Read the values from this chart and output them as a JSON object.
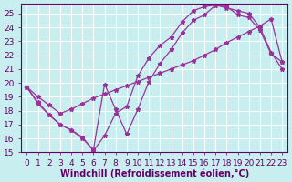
{
  "xlabel": "Windchill (Refroidissement éolien,°C)",
  "background_color": "#c8eef0",
  "grid_color": "#ffffff",
  "line_color": "#993399",
  "xlim": [
    -0.5,
    23.5
  ],
  "ylim": [
    15,
    25.7
  ],
  "yticks": [
    15,
    16,
    17,
    18,
    19,
    20,
    21,
    22,
    23,
    24,
    25
  ],
  "xticks": [
    0,
    1,
    2,
    3,
    4,
    5,
    6,
    7,
    8,
    9,
    10,
    11,
    12,
    13,
    14,
    15,
    16,
    17,
    18,
    19,
    20,
    21,
    22,
    23
  ],
  "line1_x": [
    0,
    1,
    2,
    3,
    4,
    5,
    6,
    7,
    8,
    9,
    10,
    11,
    12,
    13,
    14,
    15,
    16,
    17,
    18,
    19,
    20,
    21,
    22,
    23
  ],
  "line1_y": [
    19.7,
    18.6,
    17.7,
    17.0,
    16.6,
    16.1,
    15.1,
    16.2,
    17.8,
    18.3,
    20.5,
    21.8,
    22.7,
    23.3,
    24.4,
    25.2,
    25.5,
    25.6,
    25.5,
    24.9,
    24.7,
    23.8,
    22.1,
    21.5
  ],
  "line2_x": [
    0,
    1,
    2,
    3,
    4,
    5,
    6,
    7,
    8,
    9,
    10,
    11,
    12,
    13,
    14,
    15,
    16,
    17,
    18,
    19,
    20,
    21,
    22,
    23
  ],
  "line2_y": [
    19.7,
    18.5,
    17.7,
    17.0,
    16.6,
    16.0,
    15.2,
    19.9,
    18.1,
    16.3,
    18.1,
    20.1,
    21.4,
    22.4,
    23.6,
    24.5,
    24.9,
    25.6,
    25.4,
    25.2,
    25.0,
    24.0,
    22.2,
    21.0
  ],
  "line3_x": [
    0,
    1,
    2,
    3,
    4,
    5,
    6,
    7,
    8,
    9,
    10,
    11,
    12,
    13,
    14,
    15,
    16,
    17,
    18,
    19,
    20,
    21,
    22,
    23
  ],
  "line3_y": [
    19.7,
    19.0,
    18.4,
    17.8,
    18.1,
    18.5,
    18.9,
    19.2,
    19.5,
    19.8,
    20.1,
    20.4,
    20.7,
    21.0,
    21.3,
    21.6,
    22.0,
    22.4,
    22.9,
    23.3,
    23.7,
    24.1,
    24.6,
    21.5
  ],
  "xlabel_fontsize": 7,
  "tick_fontsize": 6.5
}
